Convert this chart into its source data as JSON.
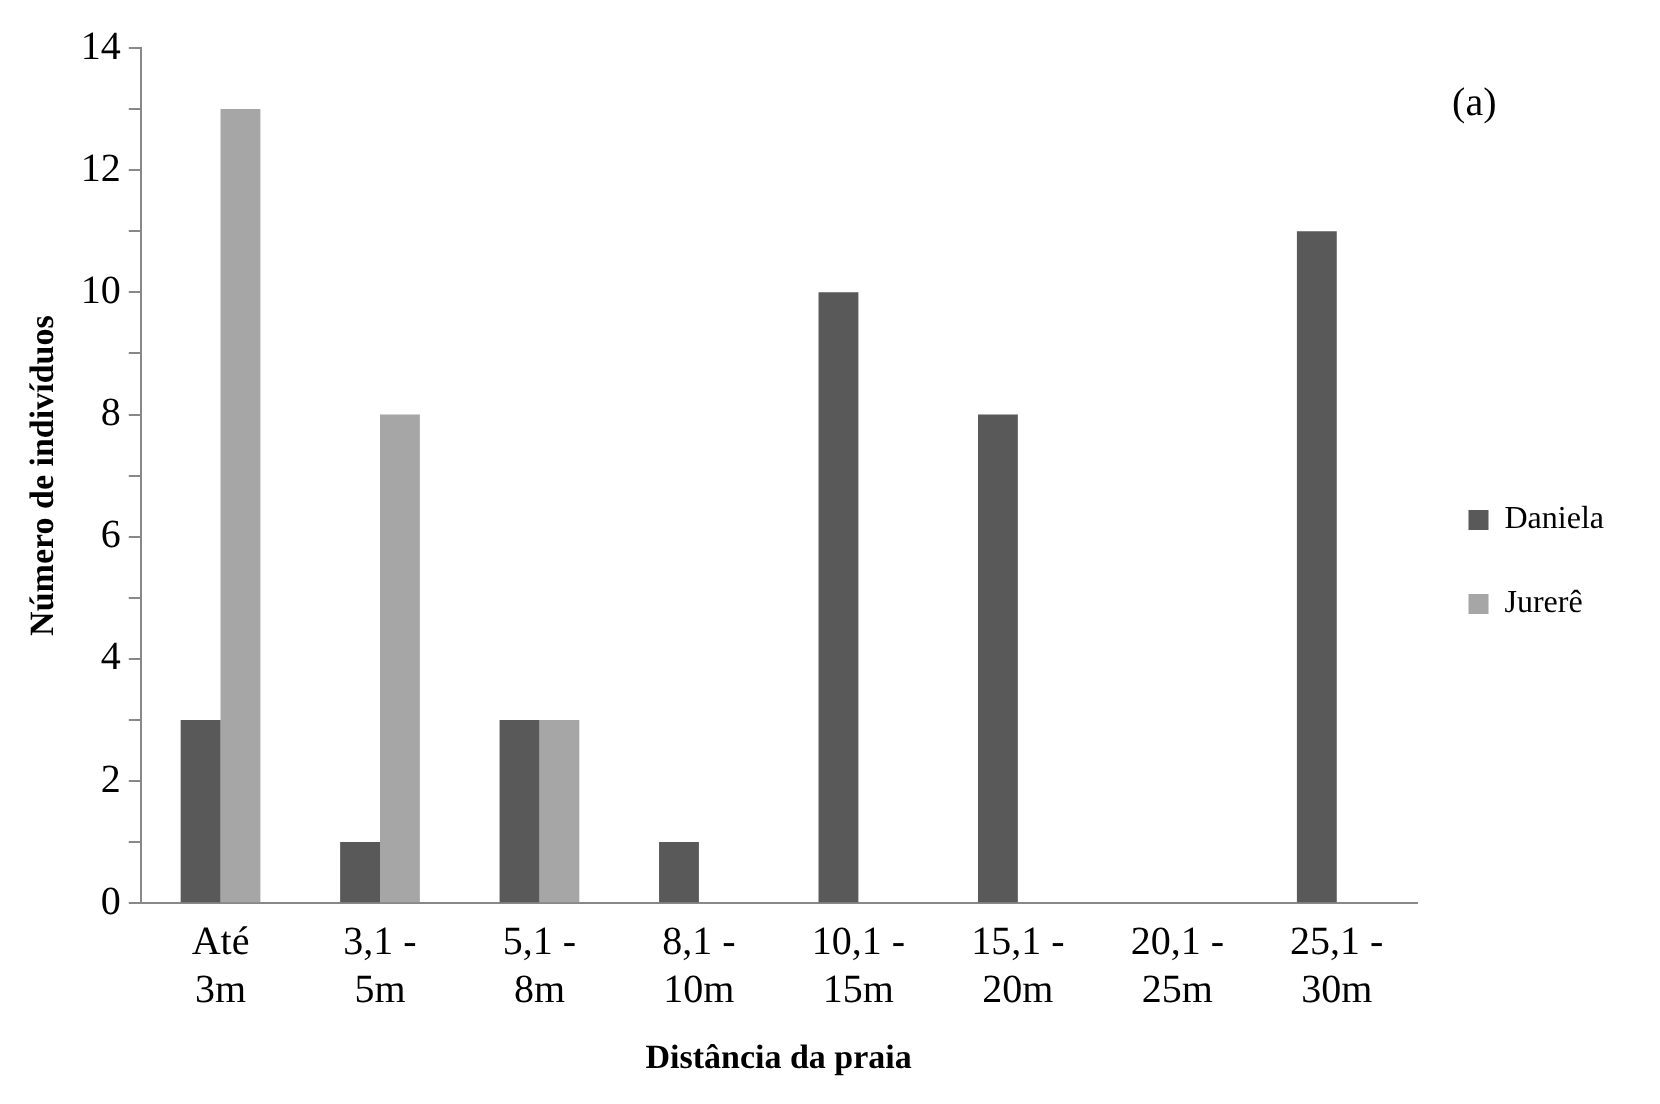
{
  "chart_data": {
    "type": "bar",
    "xlabel": "Distância da praia",
    "ylabel": "Número de indivíduos",
    "categories": [
      "Até 3m",
      "3,1 - 5m",
      "5,1 - 8m",
      "8,1 - 10m",
      "10,1 - 15m",
      "15,1 - 20m",
      "20,1 - 25m",
      "25,1 - 30m"
    ],
    "series": [
      {
        "name": "Daniela",
        "color": "#595959",
        "values": [
          3,
          1,
          3,
          1,
          10,
          8,
          0,
          11
        ]
      },
      {
        "name": "Jurerê",
        "color": "#a6a6a6",
        "values": [
          13,
          8,
          3,
          0,
          0,
          0,
          0,
          0
        ]
      }
    ],
    "ylim": [
      0,
      14
    ],
    "yticks": [
      0,
      {
        "value": 1,
        "label": null
      },
      2,
      {
        "value": 3,
        "label": null
      },
      4,
      {
        "value": 5,
        "label": null
      },
      6,
      {
        "value": 7,
        "label": null
      },
      8,
      {
        "value": 9,
        "label": null
      },
      10,
      {
        "value": 11,
        "label": null
      },
      12,
      {
        "value": 13,
        "label": null
      },
      14
    ],
    "grid": false,
    "legend": "right",
    "annotations": [
      "(a)"
    ]
  }
}
